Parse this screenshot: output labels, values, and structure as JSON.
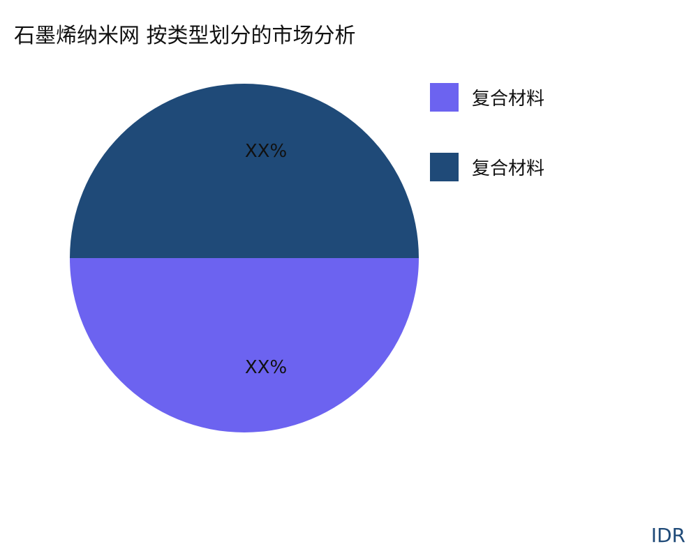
{
  "chart_data": {
    "type": "pie",
    "title": "石墨烯纳米网 按类型划分的市场分析",
    "slices": [
      {
        "name": "复合材料",
        "value": 50,
        "label": "XX%",
        "color": "#6c63f0"
      },
      {
        "name": "复合材料",
        "value": 50,
        "label": "XX%",
        "color": "#1f4a78"
      }
    ],
    "legend_position": "right"
  },
  "brand": "IDR"
}
